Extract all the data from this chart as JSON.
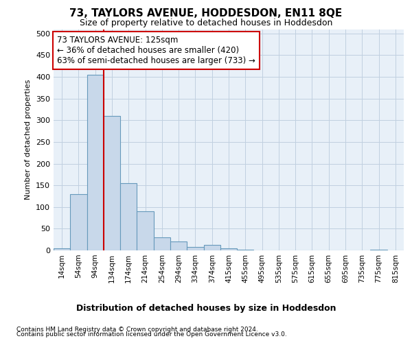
{
  "title": "73, TAYLORS AVENUE, HODDESDON, EN11 8QE",
  "subtitle": "Size of property relative to detached houses in Hoddesdon",
  "xlabel": "Distribution of detached houses by size in Hoddesdon",
  "ylabel": "Number of detached properties",
  "categories": [
    "14sqm",
    "54sqm",
    "94sqm",
    "134sqm",
    "174sqm",
    "214sqm",
    "254sqm",
    "294sqm",
    "334sqm",
    "374sqm",
    "415sqm",
    "455sqm",
    "495sqm",
    "535sqm",
    "575sqm",
    "615sqm",
    "655sqm",
    "695sqm",
    "735sqm",
    "775sqm",
    "815sqm"
  ],
  "values": [
    5,
    130,
    405,
    310,
    155,
    90,
    30,
    20,
    8,
    13,
    5,
    1,
    0,
    0,
    0,
    0,
    0,
    0,
    0,
    1,
    0
  ],
  "bar_color": "#c8d8ea",
  "bar_edge_color": "#6699bb",
  "grid_color": "#c0d0e0",
  "vline_x": 2.5,
  "vline_color": "#cc0000",
  "annotation_text": "73 TAYLORS AVENUE: 125sqm\n← 36% of detached houses are smaller (420)\n63% of semi-detached houses are larger (733) →",
  "annotation_box_color": "#cc0000",
  "footer_line1": "Contains HM Land Registry data © Crown copyright and database right 2024.",
  "footer_line2": "Contains public sector information licensed under the Open Government Licence v3.0.",
  "ylim": [
    0,
    510
  ],
  "yticks": [
    0,
    50,
    100,
    150,
    200,
    250,
    300,
    350,
    400,
    450,
    500
  ],
  "bg_color": "#ffffff",
  "plot_bg_color": "#e8f0f8"
}
